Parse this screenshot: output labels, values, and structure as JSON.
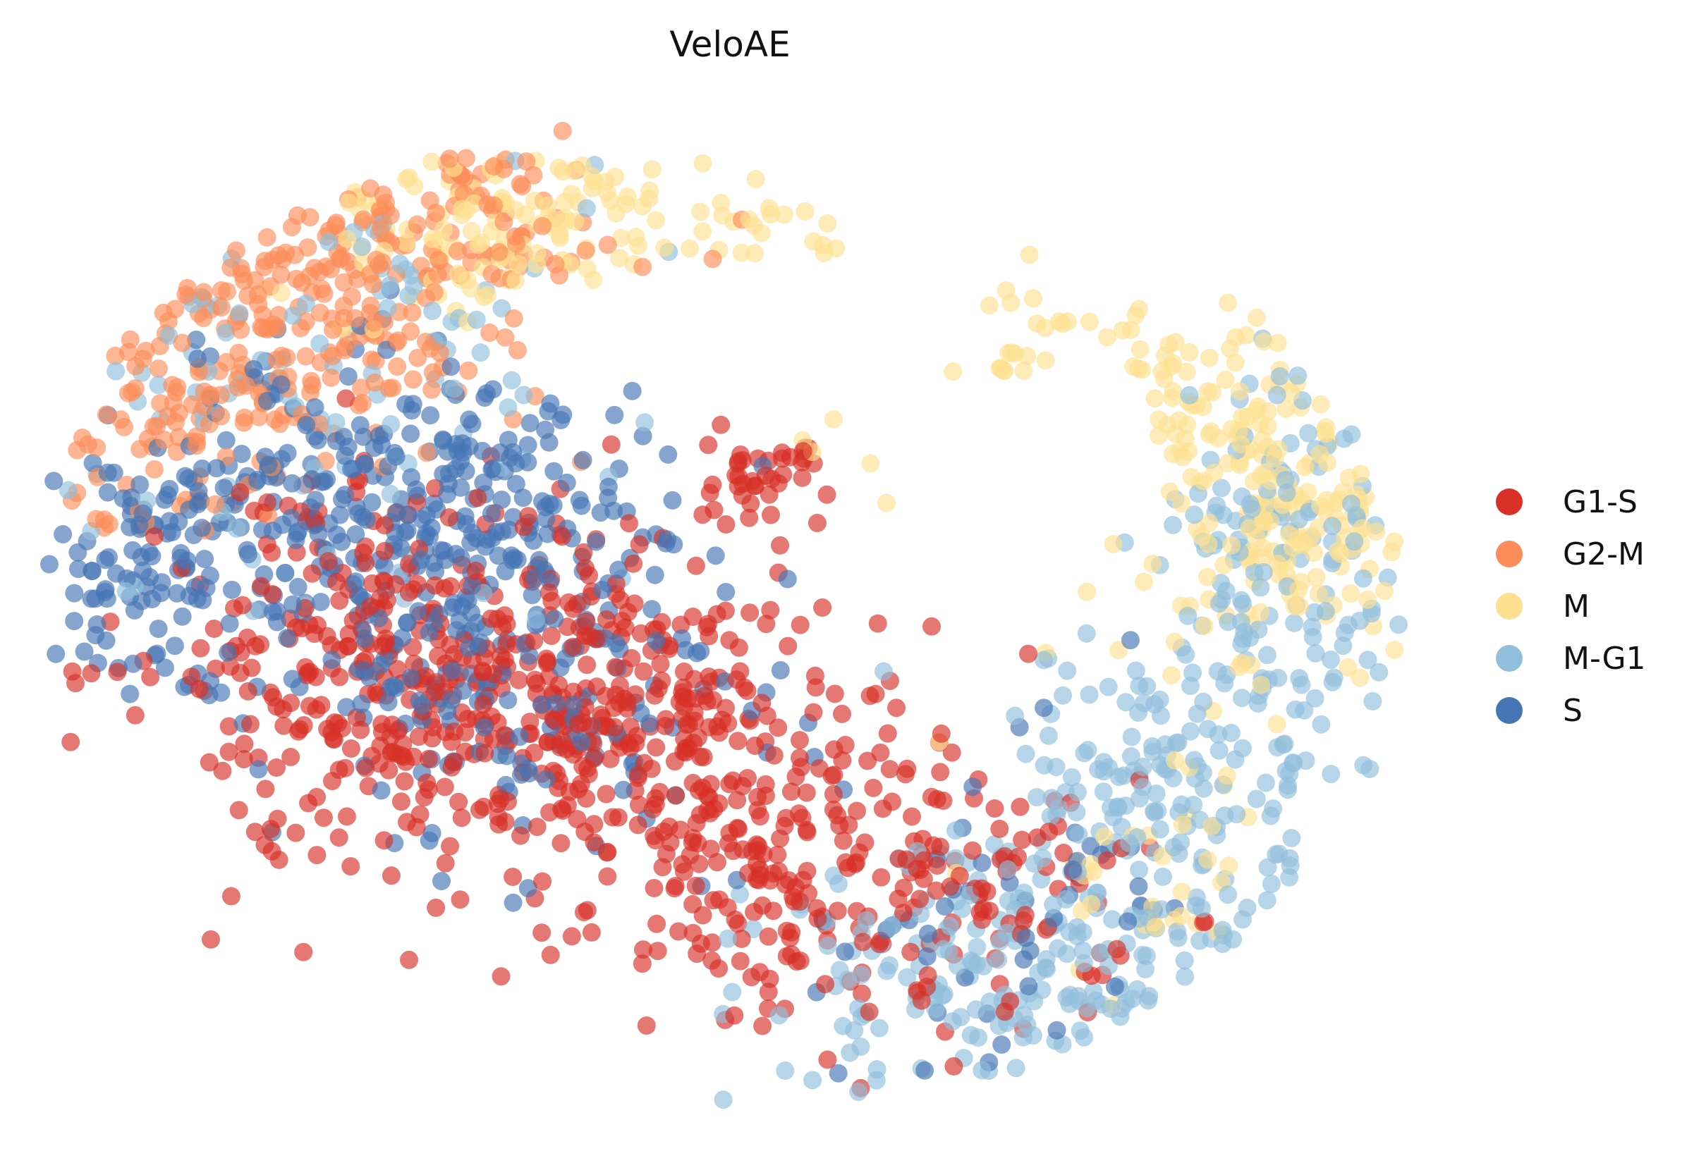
{
  "chart_data": {
    "type": "scatter",
    "title": "VeloAE",
    "xlabel": "",
    "ylabel": "",
    "axes_visible": false,
    "grid": false,
    "legend_placement": "right",
    "xlim": [
      0,
      100
    ],
    "ylim": [
      0,
      100
    ],
    "marker_opacity": 0.65,
    "series": [
      {
        "name": "G1-S",
        "color": "#d73027",
        "clusters": [
          {
            "cx": 38,
            "cy": 40,
            "sx": 9,
            "sy": 8,
            "n": 380
          },
          {
            "cx": 22,
            "cy": 45,
            "sx": 8,
            "sy": 9,
            "n": 220
          },
          {
            "cx": 50,
            "cy": 25,
            "sx": 7,
            "sy": 6,
            "n": 140
          },
          {
            "cx": 53,
            "cy": 63,
            "sx": 3,
            "sy": 3,
            "n": 40
          },
          {
            "cx": 60,
            "cy": 25,
            "sx": 8,
            "sy": 8,
            "n": 90
          },
          {
            "cx": 70,
            "cy": 20,
            "sx": 5,
            "sy": 6,
            "n": 50
          }
        ]
      },
      {
        "name": "G2-M",
        "color": "#fc8d59",
        "clusters": [
          {
            "cx": 20,
            "cy": 80,
            "sx": 8,
            "sy": 8,
            "n": 200
          },
          {
            "cx": 10,
            "cy": 67,
            "sx": 5,
            "sy": 6,
            "n": 90
          },
          {
            "cx": 30,
            "cy": 88,
            "sx": 6,
            "sy": 5,
            "n": 60
          }
        ]
      },
      {
        "name": "M",
        "color": "#fee090",
        "clusters": [
          {
            "cx": 30,
            "cy": 88,
            "sx": 7,
            "sy": 5,
            "n": 90
          },
          {
            "cx": 48,
            "cy": 85,
            "sx": 8,
            "sy": 3,
            "n": 55
          },
          {
            "cx": 74,
            "cy": 70,
            "sx": 8,
            "sy": 5,
            "n": 70
          },
          {
            "cx": 89,
            "cy": 59,
            "sx": 5,
            "sy": 7,
            "n": 170
          },
          {
            "cx": 80,
            "cy": 25,
            "sx": 6,
            "sy": 8,
            "n": 40
          }
        ]
      },
      {
        "name": "M-G1",
        "color": "#91bfdb",
        "clusters": [
          {
            "cx": 80,
            "cy": 30,
            "sx": 8,
            "sy": 10,
            "n": 220
          },
          {
            "cx": 68,
            "cy": 15,
            "sx": 8,
            "sy": 6,
            "n": 150
          },
          {
            "cx": 90,
            "cy": 57,
            "sx": 5,
            "sy": 8,
            "n": 110
          },
          {
            "cx": 20,
            "cy": 70,
            "sx": 10,
            "sy": 10,
            "n": 100
          }
        ]
      },
      {
        "name": "S",
        "color": "#4575b4",
        "clusters": [
          {
            "cx": 20,
            "cy": 58,
            "sx": 9,
            "sy": 9,
            "n": 230
          },
          {
            "cx": 32,
            "cy": 58,
            "sx": 8,
            "sy": 7,
            "n": 160
          },
          {
            "cx": 35,
            "cy": 40,
            "sx": 7,
            "sy": 7,
            "n": 120
          },
          {
            "cx": 7,
            "cy": 52,
            "sx": 4,
            "sy": 5,
            "n": 60
          },
          {
            "cx": 70,
            "cy": 20,
            "sx": 7,
            "sy": 8,
            "n": 50
          }
        ]
      }
    ]
  }
}
